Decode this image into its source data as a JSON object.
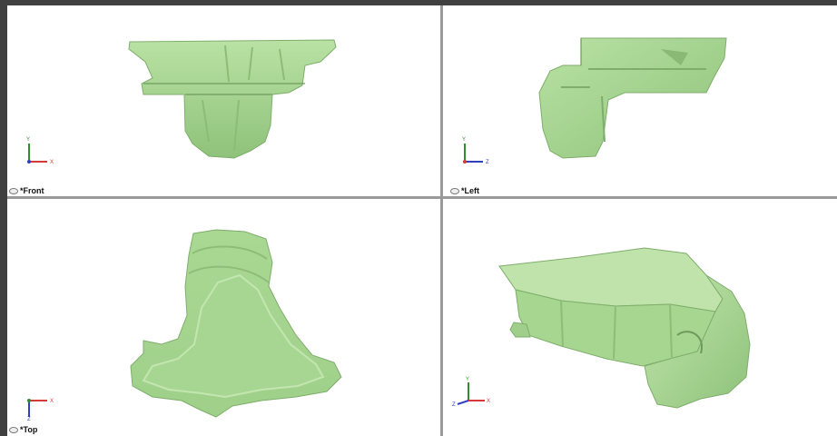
{
  "viewports": [
    {
      "id": "front",
      "label": "*Front",
      "axis_h": "X",
      "axis_v": "Y",
      "icon": "eye-icon"
    },
    {
      "id": "left",
      "label": "*Left",
      "axis_h": "Z",
      "axis_v": "Y",
      "icon": "eye-icon"
    },
    {
      "id": "top",
      "label": "*Top",
      "axis_h": "X",
      "axis_v": "Z",
      "icon": "eye-icon"
    },
    {
      "id": "iso",
      "label": "",
      "axis_h": "X",
      "axis_v": "Y",
      "axis_d": "Z"
    }
  ],
  "colors": {
    "model_fill": "#a6d690",
    "model_dark": "#6f9a5e",
    "model_light": "#c9e8b8",
    "x_axis": "#d43a3a",
    "y_axis": "#2f8f2f",
    "z_axis": "#2f3fbf"
  }
}
